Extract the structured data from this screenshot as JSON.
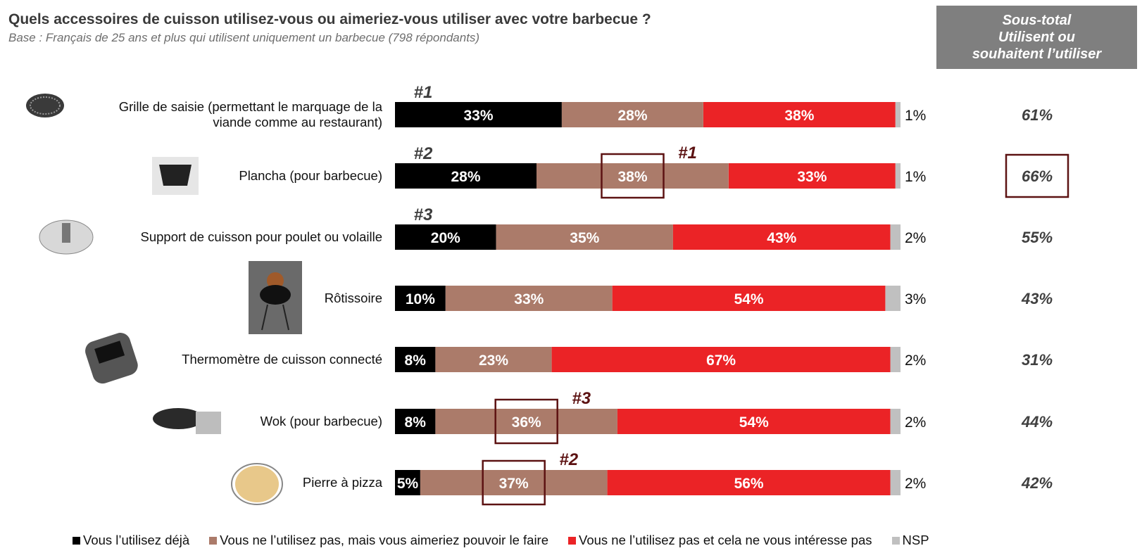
{
  "header": {
    "title": "Quels accessoires de cuisson utilisez-vous ou aimeriez-vous utiliser avec votre barbecue ?",
    "subtitle": "Base : Français de 25 ans et plus qui utilisent uniquement un barbecue (798 répondants)",
    "subtotal_lines": [
      "Sous-total",
      "Utilisent ou",
      "souhaitent l’utiliser"
    ]
  },
  "colors": {
    "utilise": "#000000",
    "aimerait": "#ab7b6a",
    "pas_interesse": "#eb2326",
    "nsp": "#c0c0c0",
    "highlight": "#5c1212"
  },
  "chart_data": {
    "type": "bar",
    "orientation": "horizontal",
    "stacked": true,
    "categories": [
      [
        "Grille de saisie (permettant le marquage de la",
        "viande comme au restaurant)"
      ],
      [
        "Plancha (pour barbecue)"
      ],
      [
        "Support de cuisson pour poulet ou volaille"
      ],
      [
        "Rôtissoire"
      ],
      [
        "Thermomètre de cuisson connecté"
      ],
      [
        "Wok (pour barbecue)"
      ],
      [
        "Pierre à pizza"
      ]
    ],
    "series": [
      {
        "name": "Vous l’utilisez déjà",
        "color": "#000000",
        "values": [
          33,
          28,
          20,
          10,
          8,
          8,
          5
        ]
      },
      {
        "name": "Vous ne l’utilisez pas, mais vous aimeriez pouvoir le faire",
        "color": "#ab7b6a",
        "values": [
          28,
          38,
          35,
          33,
          23,
          36,
          37
        ]
      },
      {
        "name": "Vous ne l’utilisez pas et cela ne vous intéresse pas",
        "color": "#eb2326",
        "values": [
          38,
          33,
          43,
          54,
          67,
          54,
          56
        ]
      },
      {
        "name": "NSP",
        "color": "#c0c0c0",
        "values": [
          1,
          1,
          2,
          3,
          2,
          2,
          2
        ]
      }
    ],
    "subtotal": [
      61,
      66,
      55,
      43,
      31,
      44,
      42
    ],
    "subtotal_highlight": [
      1
    ],
    "rankings": [
      {
        "row": 0,
        "series": 0,
        "label": "#1"
      },
      {
        "row": 1,
        "series": 0,
        "label": "#2"
      },
      {
        "row": 2,
        "series": 0,
        "label": "#3"
      },
      {
        "row": 1,
        "series": 1,
        "label": "#1"
      },
      {
        "row": 6,
        "series": 1,
        "label": "#2"
      },
      {
        "row": 5,
        "series": 1,
        "label": "#3"
      }
    ],
    "xlim": [
      0,
      100
    ],
    "unit": "%",
    "legend_position": "bottom"
  }
}
